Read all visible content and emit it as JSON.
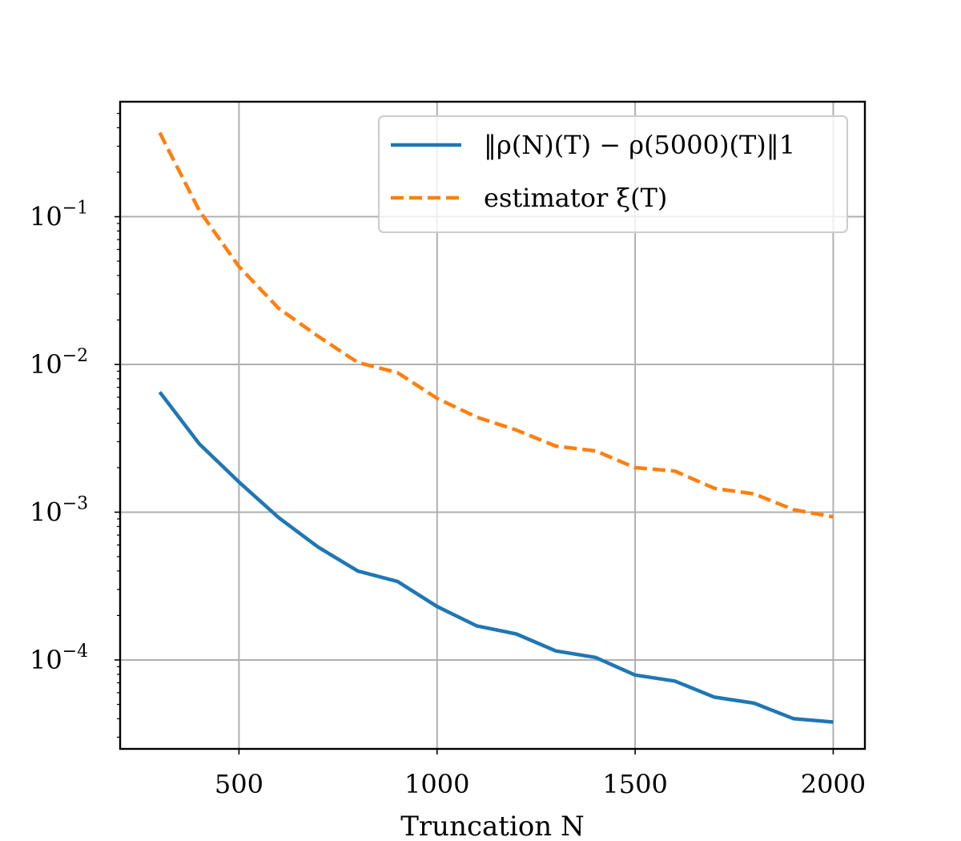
{
  "chart_data": {
    "type": "line",
    "title": "",
    "xlabel": "Truncation N",
    "ylabel": "",
    "xscale": "linear",
    "yscale": "log",
    "xlim": [
      200,
      2080
    ],
    "ylim": [
      2.5e-05,
      0.6
    ],
    "grid": true,
    "x_ticks": [
      500,
      1000,
      1500,
      2000
    ],
    "x_tick_labels": [
      "500",
      "1000",
      "1500",
      "2000"
    ],
    "y_ticks": [
      0.1,
      0.01,
      0.001,
      0.0001
    ],
    "y_tick_labels": [
      {
        "base": "10",
        "exp": "−1"
      },
      {
        "base": "10",
        "exp": "−2"
      },
      {
        "base": "10",
        "exp": "−3"
      },
      {
        "base": "10",
        "exp": "−4"
      }
    ],
    "legend": {
      "position": "top-right"
    },
    "series": [
      {
        "name": "‖ρ(N)(T) − ρ(5000)(T)‖1",
        "color": "#1f77b4",
        "style": "solid",
        "x": [
          300,
          400,
          500,
          600,
          700,
          800,
          900,
          1000,
          1100,
          1200,
          1300,
          1400,
          1500,
          1600,
          1700,
          1800,
          1900,
          2000
        ],
        "y": [
          0.0065,
          0.0029,
          0.0016,
          0.00092,
          0.00058,
          0.0004,
          0.00034,
          0.00023,
          0.00017,
          0.00015,
          0.000115,
          0.000104,
          7.9e-05,
          7.2e-05,
          5.6e-05,
          5.1e-05,
          4e-05,
          3.8e-05
        ]
      },
      {
        "name": "estimator ξ(T)",
        "color": "#ff7f0e",
        "style": "dashed",
        "x": [
          300,
          400,
          500,
          600,
          700,
          800,
          900,
          1000,
          1100,
          1200,
          1300,
          1400,
          1500,
          1600,
          1700,
          1800,
          1900,
          2000
        ],
        "y": [
          0.37,
          0.11,
          0.046,
          0.024,
          0.0155,
          0.0103,
          0.0088,
          0.0059,
          0.0044,
          0.0036,
          0.0028,
          0.0026,
          0.002,
          0.0019,
          0.00145,
          0.00133,
          0.00104,
          0.00093
        ]
      }
    ]
  }
}
